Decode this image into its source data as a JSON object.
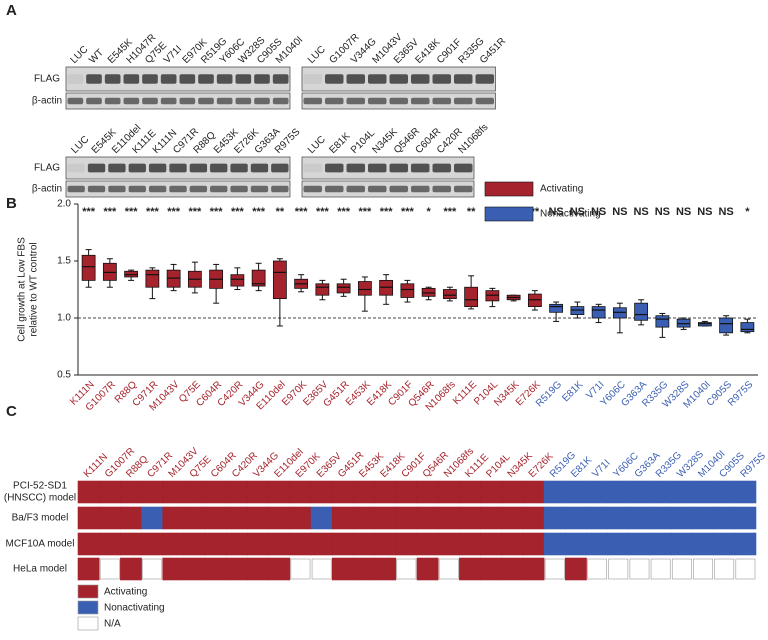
{
  "panel_a": {
    "label": "A",
    "blot_labels": [
      "FLAG",
      "β-actin"
    ],
    "rows": [
      {
        "left_lanes": [
          "LUC",
          "WT",
          "E545K",
          "H1047R",
          "Q75E",
          "V71I",
          "E970K",
          "R519G",
          "Y606C",
          "W328S",
          "C905S",
          "M1040I"
        ],
        "right_lanes": [
          "LUC",
          "G1007R",
          "V344G",
          "M1043V",
          "E365V",
          "E418K",
          "C901F",
          "R335G",
          "G451R"
        ]
      },
      {
        "left_lanes": [
          "LUC",
          "E545K",
          "E110del",
          "K111E",
          "K111N",
          "C971R",
          "R88Q",
          "E453K",
          "E726K",
          "G363A",
          "R975S"
        ],
        "right_lanes": [
          "LUC",
          "E81K",
          "P104L",
          "N345K",
          "Q546R",
          "C604R",
          "C420R",
          "N1068fs"
        ]
      }
    ]
  },
  "chart_data": {
    "type": "box",
    "label": "B",
    "ylabel": [
      "Cell growth at Low FBS",
      "relative to WT control"
    ],
    "ylim": [
      0.5,
      2.0
    ],
    "yticks": [
      0.5,
      {
        "value": 1,
        "label": "1.0"
      },
      1.5,
      {
        "value": 2,
        "label": "2.0"
      }
    ],
    "reference_line": 1,
    "series": [
      {
        "name": "Activating",
        "color": "#a5232c",
        "categories": [
          "K111N",
          "G1007R",
          "R88Q",
          "C971R",
          "M1043V",
          "Q75E",
          "C604R",
          "C420R",
          "V344G",
          "E110del",
          "E970K",
          "E365V",
          "G451R",
          "E453K",
          "E418K",
          "C901F",
          "Q546R",
          "N1068fs",
          "K111E",
          "P104L",
          "N345K",
          "E726K"
        ],
        "min": [
          1.27,
          1.27,
          1.33,
          1.17,
          1.24,
          1.22,
          1.13,
          1.25,
          1.24,
          0.93,
          1.23,
          1.16,
          1.19,
          1.06,
          1.12,
          1.14,
          1.16,
          1.15,
          1.08,
          1.1,
          1.15,
          1.07
        ],
        "q1": [
          1.33,
          1.33,
          1.36,
          1.27,
          1.27,
          1.27,
          1.26,
          1.28,
          1.28,
          1.17,
          1.26,
          1.2,
          1.22,
          1.2,
          1.2,
          1.18,
          1.19,
          1.17,
          1.1,
          1.15,
          1.16,
          1.1
        ],
        "median": [
          1.45,
          1.4,
          1.38,
          1.38,
          1.35,
          1.34,
          1.34,
          1.34,
          1.3,
          1.4,
          1.3,
          1.27,
          1.27,
          1.25,
          1.27,
          1.25,
          1.22,
          1.2,
          1.16,
          1.2,
          1.18,
          1.16
        ],
        "q3": [
          1.55,
          1.48,
          1.41,
          1.42,
          1.42,
          1.41,
          1.42,
          1.38,
          1.42,
          1.5,
          1.34,
          1.3,
          1.3,
          1.32,
          1.33,
          1.3,
          1.26,
          1.25,
          1.27,
          1.24,
          1.2,
          1.21
        ],
        "max": [
          1.6,
          1.52,
          1.42,
          1.44,
          1.47,
          1.49,
          1.47,
          1.44,
          1.48,
          1.52,
          1.38,
          1.33,
          1.34,
          1.36,
          1.38,
          1.33,
          1.27,
          1.27,
          1.37,
          1.26,
          1.2,
          1.24
        ],
        "annotations": [
          "***",
          "***",
          "***",
          "***",
          "***",
          "***",
          "***",
          "***",
          "***",
          "**",
          "***",
          "***",
          "***",
          "***",
          "***",
          "***",
          "*",
          "***",
          "**",
          "*",
          "*",
          "**"
        ]
      },
      {
        "name": "Nonactivating",
        "color": "#3a5fb2",
        "categories": [
          "R519G",
          "E81K",
          "V71I",
          "Y606C",
          "G363A",
          "R335G",
          "W328S",
          "M1040I",
          "C905S",
          "R975S"
        ],
        "min": [
          0.97,
          1.0,
          0.96,
          0.87,
          0.94,
          0.83,
          0.9,
          0.93,
          0.85,
          0.87
        ],
        "q1": [
          1.05,
          1.03,
          1.0,
          1.0,
          0.98,
          0.92,
          0.92,
          0.93,
          0.87,
          0.88
        ],
        "median": [
          1.1,
          1.07,
          1.07,
          1.05,
          1.03,
          0.99,
          0.95,
          0.95,
          0.95,
          0.9
        ],
        "q3": [
          1.12,
          1.1,
          1.1,
          1.09,
          1.13,
          1.02,
          0.99,
          0.96,
          1.0,
          0.96
        ],
        "max": [
          1.14,
          1.14,
          1.12,
          1.13,
          1.16,
          1.04,
          1.0,
          0.97,
          1.02,
          0.99
        ],
        "annotations": [
          "NS",
          "NS",
          "NS",
          "NS",
          "NS",
          "NS",
          "NS",
          "NS",
          "NS",
          "*"
        ]
      }
    ]
  },
  "panel_c": {
    "label": "C",
    "columns": [
      "K111N",
      "G1007R",
      "R88Q",
      "C971R",
      "M1043V",
      "Q75E",
      "C604R",
      "C420R",
      "V344G",
      "E110del",
      "E970K",
      "E365V",
      "G451R",
      "E453K",
      "E418K",
      "C901F",
      "Q546R",
      "N1068fs",
      "K111E",
      "P104L",
      "N345K",
      "E726K",
      "R519G",
      "E81K",
      "V71I",
      "Y606C",
      "G363A",
      "R335G",
      "W328S",
      "M1040I",
      "C905S",
      "R975S"
    ],
    "legend": [
      {
        "label": "Activating",
        "color": "#a5232c"
      },
      {
        "label": "Nonactivating",
        "color": "#3a5fb2"
      },
      {
        "label": "N/A",
        "color": "#ffffff"
      }
    ],
    "rows": [
      {
        "label": [
          "PCI-52-SD1",
          "(HNSCC) model"
        ],
        "cells": [
          "Activating",
          "Activating",
          "Activating",
          "Activating",
          "Activating",
          "Activating",
          "Activating",
          "Activating",
          "Activating",
          "Activating",
          "Activating",
          "Activating",
          "Activating",
          "Activating",
          "Activating",
          "Activating",
          "Activating",
          "Activating",
          "Activating",
          "Activating",
          "Activating",
          "Activating",
          "Nonactivating",
          "Nonactivating",
          "Nonactivating",
          "Nonactivating",
          "Nonactivating",
          "Nonactivating",
          "Nonactivating",
          "Nonactivating",
          "Nonactivating",
          "Nonactivating"
        ]
      },
      {
        "label": [
          "Ba/F3 model"
        ],
        "cells": [
          "Activating",
          "Activating",
          "Activating",
          "Nonactivating",
          "Activating",
          "Activating",
          "Activating",
          "Activating",
          "Activating",
          "Activating",
          "Activating",
          "Nonactivating",
          "Activating",
          "Activating",
          "Activating",
          "Activating",
          "Activating",
          "Activating",
          "Activating",
          "Activating",
          "Activating",
          "Activating",
          "Nonactivating",
          "Nonactivating",
          "Nonactivating",
          "Nonactivating",
          "Nonactivating",
          "Nonactivating",
          "Nonactivating",
          "Nonactivating",
          "Nonactivating",
          "Nonactivating"
        ]
      },
      {
        "label": [
          "MCF10A model"
        ],
        "cells": [
          "Activating",
          "Activating",
          "Activating",
          "Activating",
          "Activating",
          "Activating",
          "Activating",
          "Activating",
          "Activating",
          "Activating",
          "Activating",
          "Activating",
          "Activating",
          "Activating",
          "Activating",
          "Activating",
          "Activating",
          "Activating",
          "Activating",
          "Activating",
          "Activating",
          "Activating",
          "Nonactivating",
          "Nonactivating",
          "Nonactivating",
          "Nonactivating",
          "Nonactivating",
          "Nonactivating",
          "Nonactivating",
          "Nonactivating",
          "Nonactivating",
          "Nonactivating"
        ]
      },
      {
        "label": [
          "HeLa model"
        ],
        "cells": [
          "Activating",
          "N/A",
          "Activating",
          "N/A",
          "Activating",
          "Activating",
          "Activating",
          "Activating",
          "Activating",
          "Activating",
          "N/A",
          "N/A",
          "Activating",
          "Activating",
          "Activating",
          "N/A",
          "Activating",
          "N/A",
          "Activating",
          "Activating",
          "Activating",
          "Activating",
          "N/A",
          "Activating",
          "N/A",
          "N/A",
          "N/A",
          "N/A",
          "N/A",
          "N/A",
          "N/A",
          "N/A"
        ]
      }
    ]
  }
}
